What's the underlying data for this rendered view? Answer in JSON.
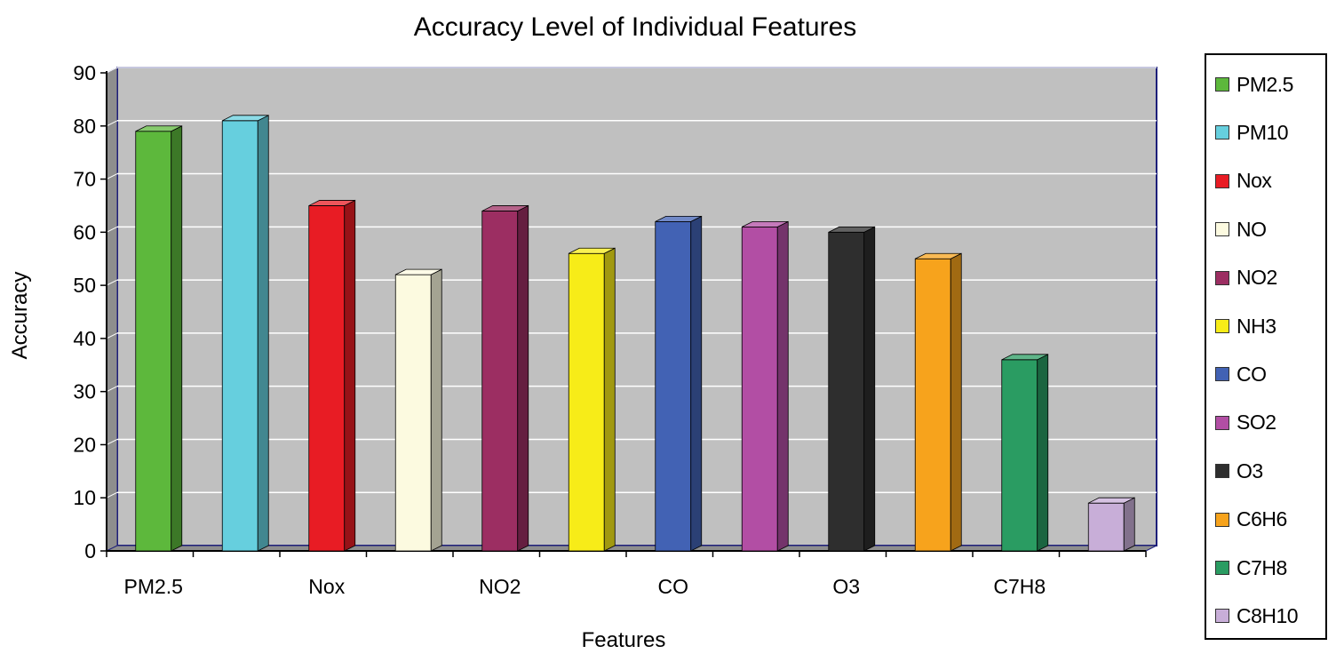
{
  "chart_data": {
    "type": "bar",
    "title": "Accuracy Level of Individual Features",
    "xlabel": "Features",
    "ylabel": "Accuracy",
    "ylim": [
      0,
      90
    ],
    "yticks": [
      0,
      10,
      20,
      30,
      40,
      50,
      60,
      70,
      80,
      90
    ],
    "categories": [
      "PM2.5",
      "PM10",
      "Nox",
      "NO",
      "NO2",
      "NH3",
      "CO",
      "SO2",
      "O3",
      "C6H6",
      "C7H8",
      "C8H10"
    ],
    "x_tick_labels": [
      "PM2.5",
      "",
      "Nox",
      "",
      "NO2",
      "",
      "CO",
      "",
      "O3",
      "",
      "C7H8",
      ""
    ],
    "values": [
      79,
      81,
      65,
      52,
      64,
      56,
      62,
      61,
      60,
      55,
      36,
      9
    ],
    "colors": [
      "#5db83c",
      "#66cfde",
      "#e81c24",
      "#fcfae0",
      "#9c2e62",
      "#f7ec18",
      "#4262b4",
      "#b24ea4",
      "#2e2e2e",
      "#f7a31c",
      "#2a9c62",
      "#c8aed8"
    ],
    "legend_position": "right",
    "grid": true
  }
}
